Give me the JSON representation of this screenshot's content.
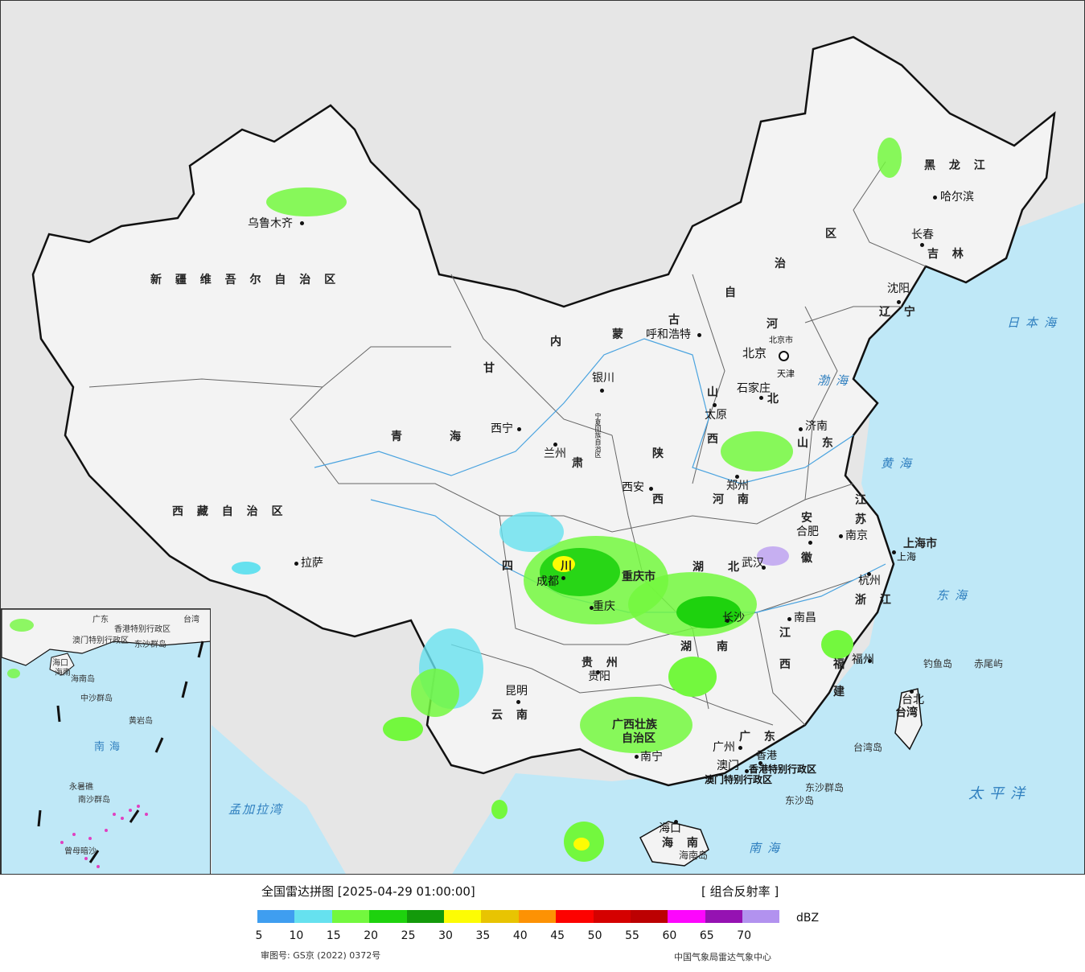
{
  "legend": {
    "title": "全国雷达拼图 [2025-04-29 01:00:00]",
    "product": "[ 组合反射率 ]",
    "unit": "dBZ",
    "ticks": [
      "5",
      "10",
      "15",
      "20",
      "25",
      "30",
      "35",
      "40",
      "45",
      "50",
      "55",
      "60",
      "65",
      "70"
    ],
    "colors": [
      "#3f9ef0",
      "#66e1ef",
      "#73f83e",
      "#1ed20e",
      "#139a0b",
      "#fdfc04",
      "#e8c402",
      "#fd9204",
      "#fd0200",
      "#d50100",
      "#bc0102",
      "#fd06fd",
      "#9512b2",
      "#b292ef"
    ],
    "approval": "审图号: GS京 (2022) 0372号",
    "credit": "中国气象局雷达气象中心"
  },
  "map": {
    "colors": {
      "sea": "#bfe8f7",
      "land": "#f2f2f2",
      "foreign": "#e3e3e3",
      "border": "#111111",
      "river": "#4aa3df"
    },
    "provinces": [
      {
        "text": "新 疆 维 吾 尔 自 治 区"
      },
      {
        "text": "西 藏 自 治 区"
      },
      {
        "text": "青"
      },
      {
        "text": "海"
      },
      {
        "text": "甘"
      },
      {
        "text": "肃"
      },
      {
        "text": "内"
      },
      {
        "text": "蒙"
      },
      {
        "text": "古"
      },
      {
        "text": "自"
      },
      {
        "text": "治"
      },
      {
        "text": "区"
      },
      {
        "text": "黑 龙 江"
      },
      {
        "text": "吉 林"
      },
      {
        "text": "辽 宁"
      },
      {
        "text": "河"
      },
      {
        "text": "北"
      },
      {
        "text": "山"
      },
      {
        "text": "西"
      },
      {
        "text": "山 东"
      },
      {
        "text": "陕"
      },
      {
        "text": "西"
      },
      {
        "text": "河 南"
      },
      {
        "text": "江"
      },
      {
        "text": "苏"
      },
      {
        "text": "安"
      },
      {
        "text": "徽"
      },
      {
        "text": "湖"
      },
      {
        "text": "北"
      },
      {
        "text": "四"
      },
      {
        "text": "川"
      },
      {
        "text": "重庆市"
      },
      {
        "text": "贵 州"
      },
      {
        "text": "湖"
      },
      {
        "text": "南"
      },
      {
        "text": "江"
      },
      {
        "text": "西"
      },
      {
        "text": "浙 江"
      },
      {
        "text": "福"
      },
      {
        "text": "建"
      },
      {
        "text": "云 南"
      },
      {
        "text": "广西壮族"
      },
      {
        "text": "自治区"
      },
      {
        "text": "广 东"
      },
      {
        "text": "海 南"
      },
      {
        "text": "上海市"
      },
      {
        "text": "台湾"
      },
      {
        "text": "天津"
      },
      {
        "text": "宁夏回族自治区"
      },
      {
        "text": "香港特别行政区"
      },
      {
        "text": "澳门特别行政区"
      }
    ],
    "cities": [
      {
        "text": "乌鲁木齐"
      },
      {
        "text": "拉萨"
      },
      {
        "text": "西宁"
      },
      {
        "text": "兰州"
      },
      {
        "text": "银川"
      },
      {
        "text": "呼和浩特"
      },
      {
        "text": "哈尔滨"
      },
      {
        "text": "长春"
      },
      {
        "text": "沈阳"
      },
      {
        "text": "北京"
      },
      {
        "text": "北京市"
      },
      {
        "text": "石家庄"
      },
      {
        "text": "太原"
      },
      {
        "text": "济南"
      },
      {
        "text": "郑州"
      },
      {
        "text": "西安"
      },
      {
        "text": "合肥"
      },
      {
        "text": "南京"
      },
      {
        "text": "上海"
      },
      {
        "text": "杭州"
      },
      {
        "text": "武汉"
      },
      {
        "text": "成都"
      },
      {
        "text": "重庆"
      },
      {
        "text": "贵阳"
      },
      {
        "text": "长沙"
      },
      {
        "text": "南昌"
      },
      {
        "text": "福州"
      },
      {
        "text": "台北"
      },
      {
        "text": "昆明"
      },
      {
        "text": "南宁"
      },
      {
        "text": "广州"
      },
      {
        "text": "香港"
      },
      {
        "text": "澳门"
      },
      {
        "text": "海口"
      }
    ],
    "seas": [
      {
        "text": "日本海"
      },
      {
        "text": "渤海"
      },
      {
        "text": "黄海"
      },
      {
        "text": "东海"
      },
      {
        "text": "太平洋"
      },
      {
        "text": "南海"
      },
      {
        "text": "孟加拉湾"
      }
    ],
    "islands": [
      {
        "text": "钓鱼岛"
      },
      {
        "text": "赤尾屿"
      },
      {
        "text": "台湾岛"
      },
      {
        "text": "东沙群岛"
      },
      {
        "text": "东沙岛"
      },
      {
        "text": "海南岛"
      }
    ],
    "inset": {
      "labels": [
        "广东",
        "香港特别行政区",
        "澳门特别行政区",
        "海口",
        "海南",
        "海南岛",
        "东沙群岛",
        "中沙群岛",
        "黄岩岛",
        "南海",
        "永暑礁",
        "南沙群岛",
        "曾母暗沙",
        "台湾"
      ]
    }
  }
}
